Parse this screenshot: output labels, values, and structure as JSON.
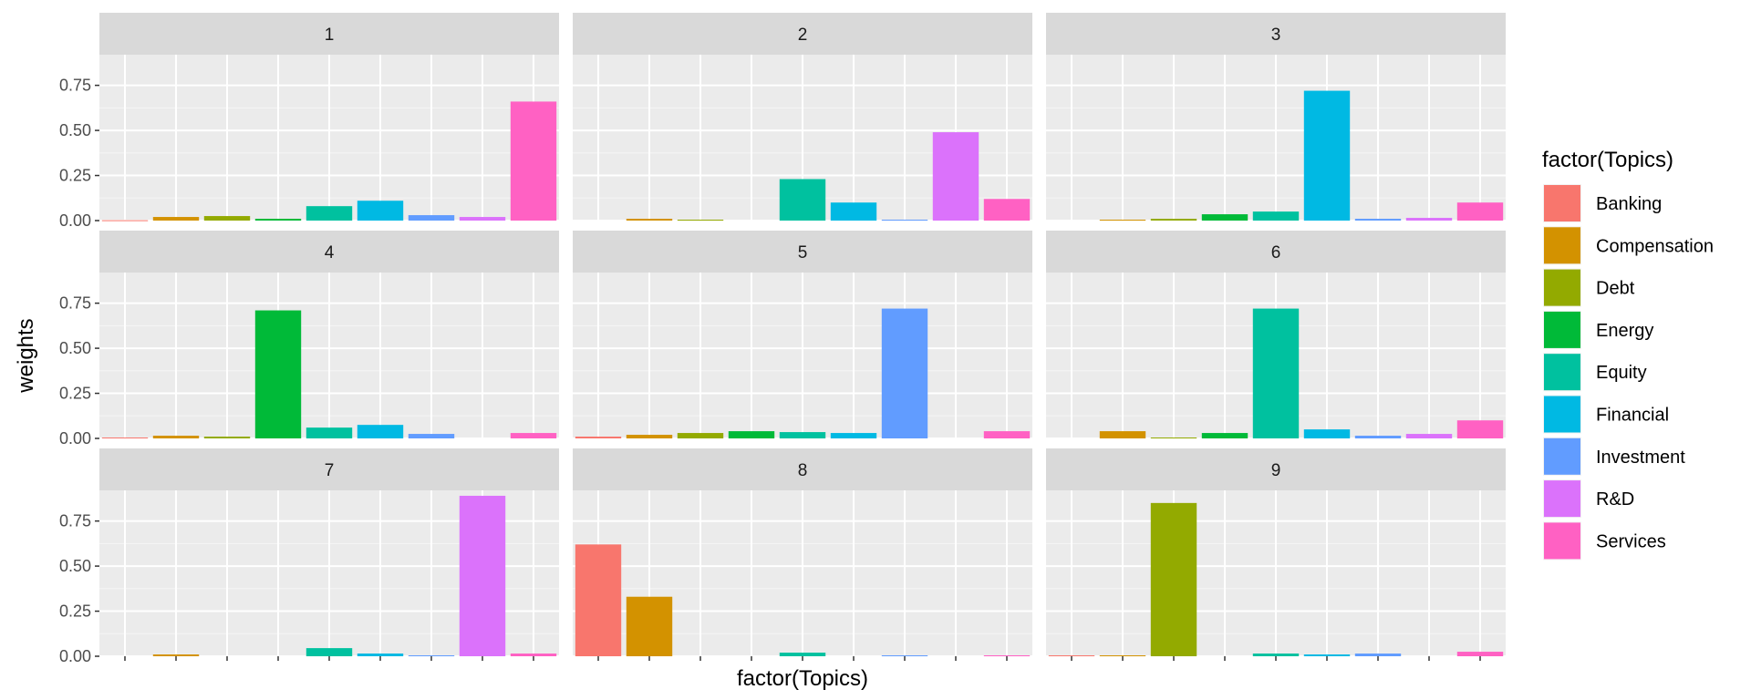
{
  "chart_data": {
    "type": "bar",
    "facet_by": "topic",
    "categories": [
      "Banking",
      "Compensation",
      "Debt",
      "Energy",
      "Equity",
      "Financial",
      "Investment",
      "R&D",
      "Services"
    ],
    "colors": {
      "Banking": "#F8766D",
      "Compensation": "#D39200",
      "Debt": "#93AA00",
      "Energy": "#00BA38",
      "Equity": "#00C19F",
      "Financial": "#00B9E3",
      "Investment": "#619CFF",
      "R&D": "#DB72FB",
      "Services": "#FF61C3"
    },
    "panels": [
      {
        "label": "1",
        "values": [
          0.002,
          0.02,
          0.025,
          0.01,
          0.08,
          0.11,
          0.03,
          0.02,
          0.66
        ]
      },
      {
        "label": "2",
        "values": [
          0.0,
          0.01,
          0.005,
          0.0,
          0.23,
          0.1,
          0.005,
          0.49,
          0.12
        ]
      },
      {
        "label": "3",
        "values": [
          0.0,
          0.005,
          0.01,
          0.035,
          0.05,
          0.72,
          0.01,
          0.015,
          0.1
        ]
      },
      {
        "label": "4",
        "values": [
          0.005,
          0.015,
          0.01,
          0.71,
          0.06,
          0.075,
          0.025,
          0.0,
          0.03
        ]
      },
      {
        "label": "5",
        "values": [
          0.01,
          0.02,
          0.03,
          0.04,
          0.035,
          0.03,
          0.72,
          0.0,
          0.04
        ]
      },
      {
        "label": "6",
        "values": [
          0.0,
          0.04,
          0.005,
          0.03,
          0.72,
          0.05,
          0.015,
          0.025,
          0.1
        ]
      },
      {
        "label": "7",
        "values": [
          0.0,
          0.01,
          0.0,
          0.0,
          0.045,
          0.015,
          0.005,
          0.89,
          0.015
        ]
      },
      {
        "label": "8",
        "values": [
          0.62,
          0.33,
          0.0,
          0.0,
          0.02,
          0.0,
          0.005,
          0.0,
          0.005
        ]
      },
      {
        "label": "9",
        "values": [
          0.005,
          0.005,
          0.85,
          0.0,
          0.015,
          0.01,
          0.015,
          0.0,
          0.025
        ]
      }
    ],
    "xlabel": "factor(Topics)",
    "ylabel": "weights",
    "ylim": [
      0,
      0.92
    ],
    "yticks": [
      0.0,
      0.25,
      0.5,
      0.75
    ],
    "ytick_labels": [
      "0.00",
      "0.25",
      "0.50",
      "0.75"
    ],
    "grid": true,
    "legend": {
      "title": "factor(Topics)",
      "placement": "right",
      "entries": [
        "Banking",
        "Compensation",
        "Debt",
        "Energy",
        "Equity",
        "Financial",
        "Investment",
        "R&D",
        "Services"
      ]
    }
  }
}
